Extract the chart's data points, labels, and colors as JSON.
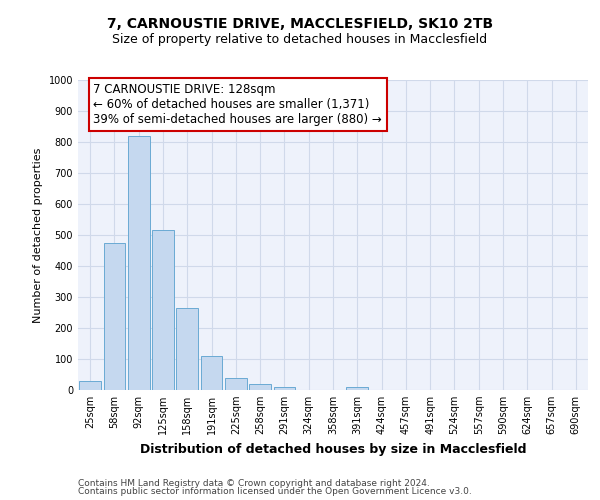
{
  "title_line1": "7, CARNOUSTIE DRIVE, MACCLESFIELD, SK10 2TB",
  "title_line2": "Size of property relative to detached houses in Macclesfield",
  "xlabel": "Distribution of detached houses by size in Macclesfield",
  "ylabel": "Number of detached properties",
  "footnote1": "Contains HM Land Registry data © Crown copyright and database right 2024.",
  "footnote2": "Contains public sector information licensed under the Open Government Licence v3.0.",
  "categories": [
    "25sqm",
    "58sqm",
    "92sqm",
    "125sqm",
    "158sqm",
    "191sqm",
    "225sqm",
    "258sqm",
    "291sqm",
    "324sqm",
    "358sqm",
    "391sqm",
    "424sqm",
    "457sqm",
    "491sqm",
    "524sqm",
    "557sqm",
    "590sqm",
    "624sqm",
    "657sqm",
    "690sqm"
  ],
  "values": [
    30,
    475,
    820,
    515,
    265,
    110,
    40,
    20,
    10,
    0,
    0,
    10,
    0,
    0,
    0,
    0,
    0,
    0,
    0,
    0,
    0
  ],
  "bar_color": "#c5d8ef",
  "bar_edge_color": "#6aaad4",
  "annotation_box_color": "#cc0000",
  "annotation_text": "7 CARNOUSTIE DRIVE: 128sqm\n← 60% of detached houses are smaller (1,371)\n39% of semi-detached houses are larger (880) →",
  "ylim": [
    0,
    1000
  ],
  "yticks": [
    0,
    100,
    200,
    300,
    400,
    500,
    600,
    700,
    800,
    900,
    1000
  ],
  "grid_color": "#d0d9ea",
  "bg_color": "#eef2fb",
  "title1_fontsize": 10,
  "title2_fontsize": 9,
  "xlabel_fontsize": 9,
  "ylabel_fontsize": 8,
  "tick_fontsize": 7,
  "annotation_fontsize": 8.5,
  "footnote_fontsize": 6.5
}
